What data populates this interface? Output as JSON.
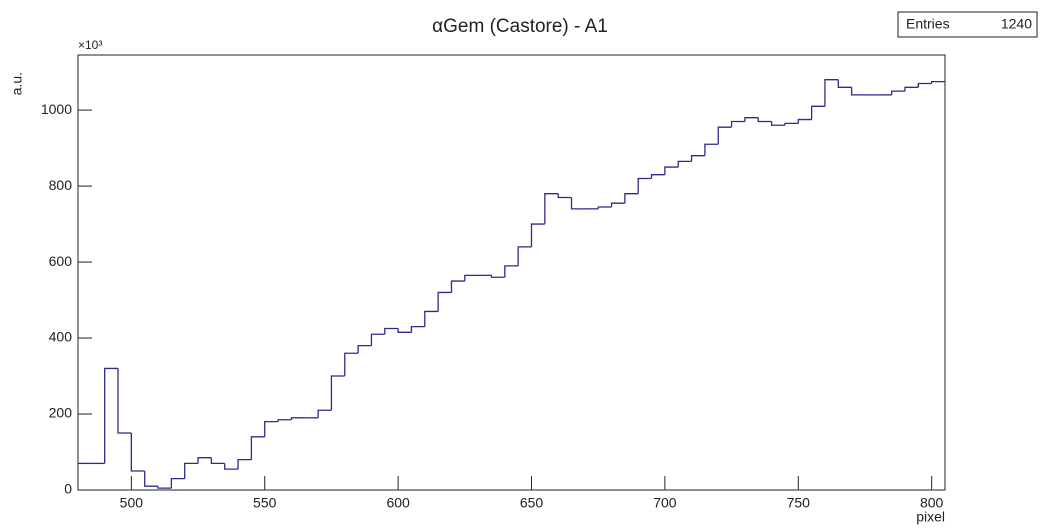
{
  "chart_data": {
    "type": "histogram",
    "title": "αGem (Castore) - A1",
    "stats_label": "Entries",
    "stats_value": "1240",
    "y_label": "a.u.",
    "x_label": "pixel",
    "y_exponent_label": "×10³",
    "color": "#2b2b8c",
    "bins": [
      480,
      485,
      490,
      495,
      500,
      505,
      510,
      515,
      520,
      525,
      530,
      535,
      540,
      545,
      550,
      555,
      560,
      565,
      570,
      575,
      580,
      585,
      590,
      595,
      600,
      605,
      610,
      615,
      620,
      625,
      630,
      635,
      640,
      645,
      650,
      655,
      660,
      665,
      670,
      675,
      680,
      685,
      690,
      695,
      700,
      705,
      710,
      715,
      720,
      725,
      730,
      735,
      740,
      745,
      750,
      755,
      760,
      765,
      770,
      775,
      780,
      785,
      790,
      795,
      800,
      805
    ],
    "values": [
      70,
      70,
      320,
      150,
      50,
      10,
      5,
      30,
      70,
      85,
      70,
      55,
      80,
      140,
      180,
      185,
      190,
      190,
      210,
      300,
      360,
      380,
      410,
      425,
      415,
      430,
      470,
      520,
      550,
      565,
      565,
      560,
      590,
      640,
      700,
      780,
      770,
      740,
      740,
      745,
      755,
      780,
      820,
      830,
      850,
      865,
      880,
      910,
      955,
      970,
      980,
      970,
      960,
      965,
      975,
      1010,
      1080,
      1060,
      1040,
      1040,
      1040,
      1050,
      1060,
      1070,
      1075
    ],
    "xlim": [
      480,
      805
    ],
    "xticks": [
      500,
      550,
      600,
      650,
      700,
      750,
      800
    ],
    "ylim": [
      0,
      1145
    ],
    "yticks": [
      0,
      200,
      400,
      600,
      800,
      1000
    ]
  }
}
